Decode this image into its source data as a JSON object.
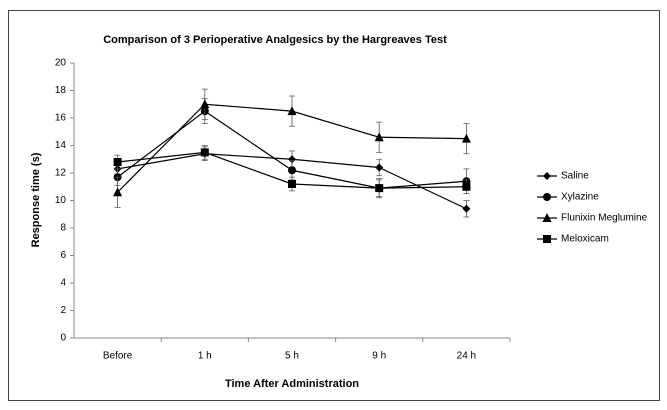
{
  "chart_data": {
    "type": "line",
    "title": "Comparison of 3 Perioperative Analgesics by the Hargreaves Test",
    "x_label": "Time After Administration",
    "y_label": "Response time (s)",
    "categories": [
      "Before",
      "1 h",
      "5 h",
      "9 h",
      "24 h"
    ],
    "series": [
      {
        "name": "Saline",
        "color": "#000000",
        "marker": "diamond",
        "values": [
          12.3,
          13.4,
          13.0,
          12.4,
          9.4
        ],
        "errors": [
          0.5,
          0.5,
          0.6,
          0.6,
          0.6
        ]
      },
      {
        "name": "Xylazine",
        "color": "#000000",
        "marker": "circle",
        "values": [
          11.7,
          16.5,
          12.2,
          10.9,
          11.4
        ],
        "errors": [
          0.6,
          0.9,
          0.7,
          0.7,
          0.9
        ]
      },
      {
        "name": "Flunixin Meglumine",
        "color": "#000000",
        "marker": "triangle",
        "values": [
          10.6,
          17.0,
          16.5,
          14.6,
          14.5
        ],
        "errors": [
          1.1,
          1.1,
          1.1,
          1.1,
          1.1
        ]
      },
      {
        "name": "Meloxicam",
        "color": "#000000",
        "marker": "square",
        "values": [
          12.8,
          13.5,
          11.2,
          10.9,
          11.0
        ],
        "errors": [
          0.5,
          0.5,
          0.5,
          0.6,
          0.5
        ]
      }
    ],
    "ylim": [
      0,
      20
    ],
    "yticks": [
      0,
      2,
      4,
      6,
      8,
      10,
      12,
      14,
      16,
      18,
      20
    ],
    "grid": false,
    "legend": "right"
  }
}
